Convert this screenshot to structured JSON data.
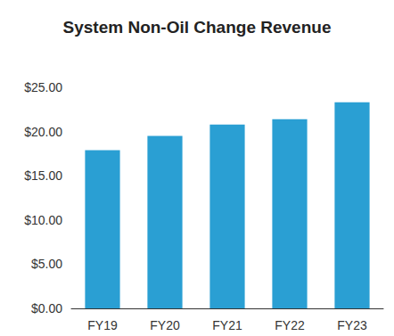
{
  "chart_data": {
    "type": "bar",
    "title": "System Non-Oil Change Revenue",
    "categories": [
      "FY19",
      "FY20",
      "FY21",
      "FY22",
      "FY23"
    ],
    "values": [
      17.9,
      19.5,
      20.8,
      21.4,
      23.3
    ],
    "color": "#2a9fd3",
    "ylim": [
      0,
      25
    ],
    "yticks": [
      {
        "value": 0,
        "label": "$0.00"
      },
      {
        "value": 5,
        "label": "$5.00"
      },
      {
        "value": 10,
        "label": "$10.00"
      },
      {
        "value": 15,
        "label": "$15.00"
      },
      {
        "value": 20,
        "label": "$20.00"
      },
      {
        "value": 25,
        "label": "$25.00"
      }
    ],
    "grid": false
  }
}
